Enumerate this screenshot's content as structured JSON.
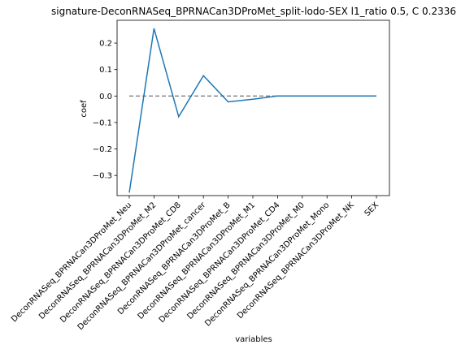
{
  "chart_data": {
    "type": "line",
    "title": "signature-DeconRNASeq_BPRNACan3DProMet_split-lodo-SEX l1_ratio 0.5, C 0.2336",
    "xlabel": "variables",
    "ylabel": "coef",
    "categories": [
      "DeconRNASeq_BPRNACan3DProMet_Neu",
      "DeconRNASeq_BPRNACan3DProMet_M2",
      "DeconRNASeq_BPRNACan3DProMet_CD8",
      "DeconRNASeq_BPRNACan3DProMet_cancer",
      "DeconRNASeq_BPRNACan3DProMet_B",
      "DeconRNASeq_BPRNACan3DProMet_M1",
      "DeconRNASeq_BPRNACan3DProMet_CD4",
      "DeconRNASeq_BPRNACan3DProMet_M0",
      "DeconRNASeq_BPRNACan3DProMet_Mono",
      "DeconRNASeq_BPRNACan3DProMet_NK",
      "SEX"
    ],
    "series": [
      {
        "values": [
          -0.365,
          0.255,
          -0.078,
          0.077,
          -0.022,
          -0.012,
          0.0,
          0.0,
          0.0,
          0.0,
          0.0
        ],
        "color": "#1f77b4"
      }
    ],
    "reference_line": {
      "y": 0,
      "style": "dashed",
      "color": "#808080"
    },
    "yticks": [
      -0.3,
      -0.2,
      -0.1,
      0.0,
      0.1,
      0.2
    ],
    "ytick_labels": [
      "−0.3",
      "−0.2",
      "−0.1",
      "0.0",
      "0.1",
      "0.2"
    ],
    "ylim": [
      -0.376,
      0.286
    ],
    "grid": false
  }
}
